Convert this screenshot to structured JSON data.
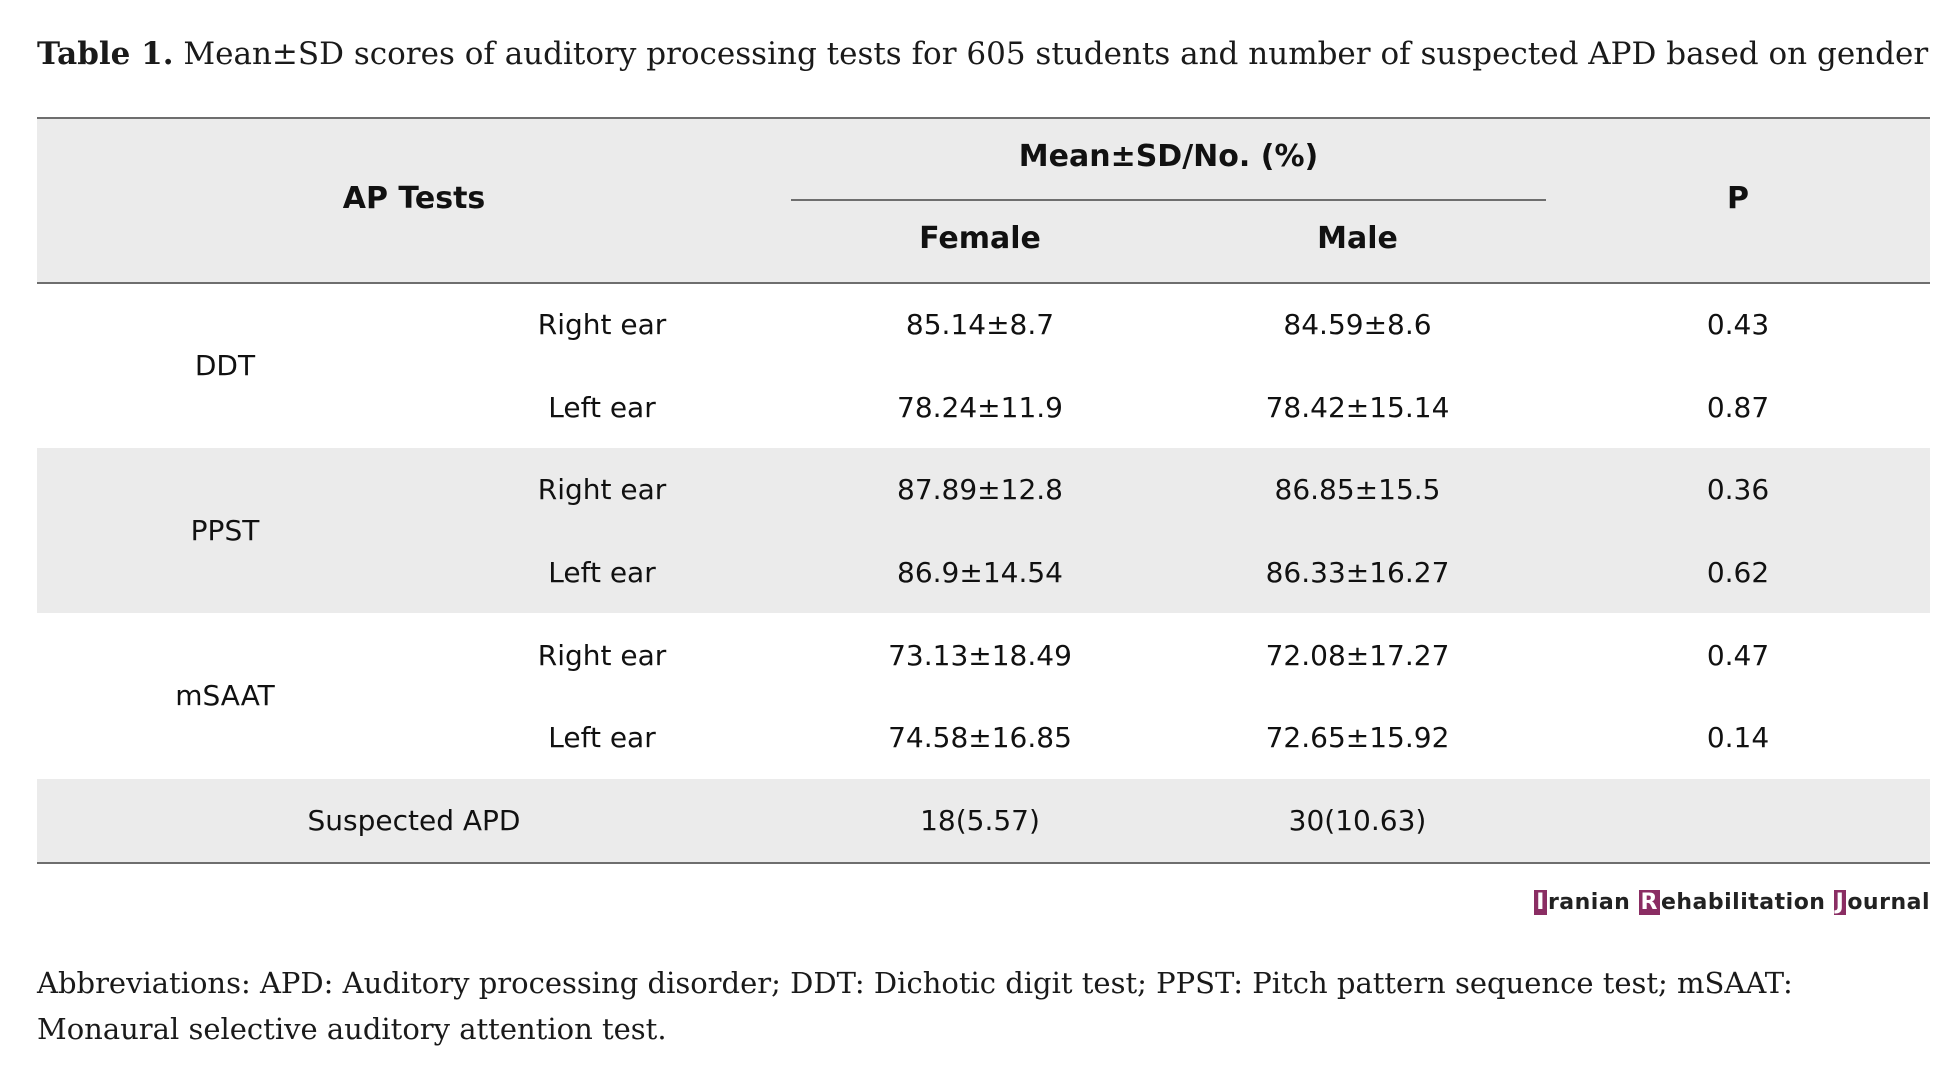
{
  "caption": {
    "label": "Table 1.",
    "text": "Mean±SD scores of auditory processing tests for 605 students and number of suspected APD based on gender"
  },
  "table": {
    "headers": {
      "ap_tests": "AP Tests",
      "group": "Mean±SD/No. (%)",
      "female": "Female",
      "male": "Male",
      "p": "P"
    },
    "tests": [
      {
        "name": "DDT",
        "rows": [
          {
            "ear": "Right ear",
            "female": "85.14±8.7",
            "male": "84.59±8.6",
            "p": "0.43"
          },
          {
            "ear": "Left ear",
            "female": "78.24±11.9",
            "male": "78.42±15.14",
            "p": "0.87"
          }
        ]
      },
      {
        "name": "PPST",
        "rows": [
          {
            "ear": "Right ear",
            "female": "87.89±12.8",
            "male": "86.85±15.5",
            "p": "0.36"
          },
          {
            "ear": "Left ear",
            "female": "86.9±14.54",
            "male": "86.33±16.27",
            "p": "0.62"
          }
        ]
      },
      {
        "name": "mSAAT",
        "rows": [
          {
            "ear": "Right ear",
            "female": "73.13±18.49",
            "male": "72.08±17.27",
            "p": "0.47"
          },
          {
            "ear": "Left ear",
            "female": "74.58±16.85",
            "male": "72.65±15.92",
            "p": "0.14"
          }
        ]
      }
    ],
    "suspected": {
      "label": "Suspected APD",
      "female": "18(5.57)",
      "male": "30(10.63)",
      "p": ""
    }
  },
  "brand": {
    "w1_cap": "I",
    "w1_rest": "ranian ",
    "w2_cap": "R",
    "w2_rest": "ehabilitation ",
    "w3_cap": "J",
    "w3_rest": "ournal",
    "accent_color": "#8a2d63"
  },
  "abbreviations": "Abbreviations: APD: Auditory processing disorder; DDT: Dichotic digit test; PPST: Pitch pattern sequence test; mSAAT: Monaural selective auditory attention test."
}
